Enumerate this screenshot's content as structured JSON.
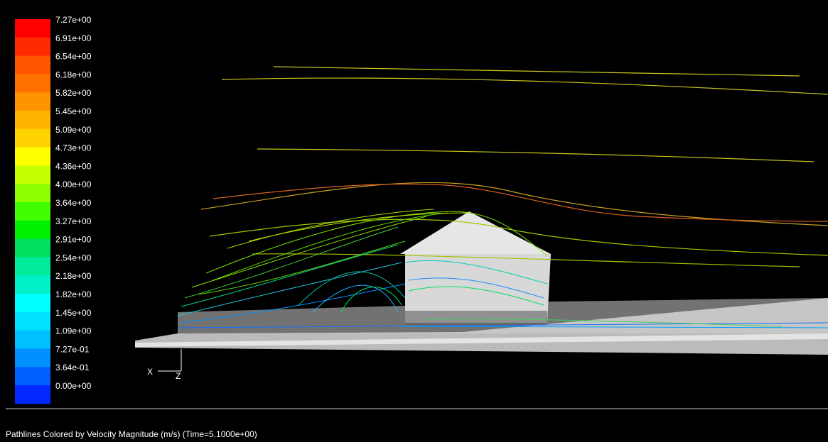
{
  "chart_data": {
    "type": "heatmap",
    "title": "",
    "caption": "Pathlines Colored by Velocity Magnitude (m/s)  (Time=5.1000e+00)",
    "colorbar": {
      "labels": [
        "7.27e+00",
        "6.91e+00",
        "6.54e+00",
        "6.18e+00",
        "5.82e+00",
        "5.45e+00",
        "5.09e+00",
        "4.73e+00",
        "4.36e+00",
        "4.00e+00",
        "3.64e+00",
        "3.27e+00",
        "2.91e+00",
        "2.54e+00",
        "2.18e+00",
        "1.82e+00",
        "1.45e+00",
        "1.09e+00",
        "7.27e-01",
        "3.64e-01",
        "0.00e+00"
      ],
      "colors": [
        "#ff0000",
        "#ff2a00",
        "#ff5500",
        "#ff7000",
        "#ff9400",
        "#ffb400",
        "#ffd200",
        "#ffff00",
        "#c6ff00",
        "#8cff00",
        "#40ff00",
        "#00f000",
        "#00e060",
        "#00eb9b",
        "#00f0c8",
        "#00ffff",
        "#00e0ff",
        "#00c0ff",
        "#0090ff",
        "#0060ff",
        "#0028ff"
      ],
      "min": 0.0,
      "max": 7.27,
      "unit": "m/s"
    },
    "axes_triad": {
      "x_label": "X",
      "z_label": "Z"
    }
  }
}
